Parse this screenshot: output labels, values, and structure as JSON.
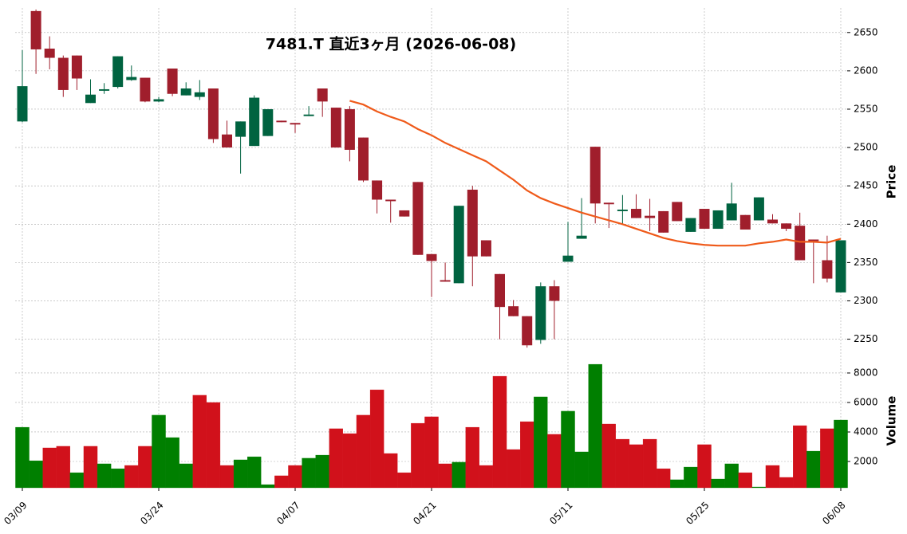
{
  "chart_data": {
    "type": "candlestick",
    "title": "7481.T  直近3ヶ月  (2026-06-08)",
    "categories": [
      "03/09",
      null,
      null,
      null,
      null,
      null,
      null,
      null,
      null,
      null,
      "03/24",
      null,
      null,
      null,
      null,
      null,
      null,
      null,
      null,
      null,
      "04/07",
      null,
      null,
      null,
      null,
      null,
      null,
      null,
      null,
      null,
      "04/21",
      null,
      null,
      null,
      null,
      null,
      null,
      null,
      null,
      null,
      "05/11",
      null,
      null,
      null,
      null,
      null,
      null,
      null,
      null,
      null,
      "05/25",
      null,
      null,
      null,
      null,
      null,
      null,
      null,
      null,
      null,
      "06/08"
    ],
    "open": [
      2534,
      2678,
      2629,
      2617,
      2620,
      2558,
      2574,
      2579,
      2588,
      2591,
      2560,
      2603,
      2568,
      2566,
      2577,
      2517,
      2514,
      2502,
      2515,
      2535,
      2532,
      2541,
      2577,
      2552,
      2550,
      2513,
      2457,
      2432,
      2418,
      2455,
      2361,
      2327,
      2323,
      2445,
      2379,
      2335,
      2293,
      2280,
      2249,
      2319,
      2351,
      2381,
      2501,
      2428,
      2417,
      2420,
      2411,
      2417,
      2429,
      2390,
      2420,
      2394,
      2405,
      2412,
      2405,
      2406,
      2401,
      2398,
      2380,
      2353,
      2311
    ],
    "high": [
      2627,
      2680,
      2645,
      2620,
      2620,
      2589,
      2584,
      2619,
      2607,
      2591,
      2566,
      2603,
      2585,
      2588,
      2577,
      2535,
      2534,
      2568,
      2550,
      2535,
      2532,
      2554,
      2577,
      2552,
      2554,
      2513,
      2457,
      2432,
      2418,
      2455,
      2361,
      2350,
      2424,
      2450,
      2379,
      2335,
      2301,
      2280,
      2324,
      2327,
      2403,
      2434,
      2501,
      2428,
      2438,
      2439,
      2433,
      2417,
      2429,
      2408,
      2420,
      2418,
      2454,
      2412,
      2435,
      2413,
      2401,
      2415,
      2380,
      2385,
      2379
    ],
    "low": [
      2533,
      2596,
      2602,
      2566,
      2575,
      2558,
      2570,
      2577,
      2587,
      2559,
      2559,
      2567,
      2568,
      2562,
      2506,
      2500,
      2466,
      2502,
      2515,
      2533,
      2519,
      2541,
      2540,
      2500,
      2482,
      2455,
      2414,
      2402,
      2410,
      2360,
      2305,
      2325,
      2323,
      2319,
      2358,
      2250,
      2280,
      2239,
      2244,
      2250,
      2351,
      2381,
      2401,
      2395,
      2400,
      2408,
      2391,
      2389,
      2404,
      2390,
      2394,
      2394,
      2405,
      2393,
      2405,
      2401,
      2391,
      2353,
      2323,
      2324,
      2311
    ],
    "close": [
      2580,
      2628,
      2617,
      2575,
      2590,
      2569,
      2576,
      2619,
      2592,
      2560,
      2563,
      2570,
      2577,
      2572,
      2511,
      2500,
      2534,
      2565,
      2550,
      2533,
      2530,
      2543,
      2560,
      2500,
      2497,
      2457,
      2432,
      2430,
      2410,
      2360,
      2352,
      2325,
      2424,
      2358,
      2358,
      2292,
      2280,
      2242,
      2319,
      2300,
      2359,
      2385,
      2427,
      2426,
      2419,
      2408,
      2408,
      2389,
      2404,
      2408,
      2394,
      2418,
      2427,
      2393,
      2435,
      2401,
      2394,
      2353,
      2378,
      2329,
      2379
    ],
    "up_color": "#006340",
    "down_color": "#a01e2c",
    "ma": {
      "color": "#ef5a1a",
      "values": [
        null,
        null,
        null,
        null,
        null,
        null,
        null,
        null,
        null,
        null,
        null,
        null,
        null,
        null,
        null,
        null,
        null,
        null,
        null,
        null,
        null,
        null,
        null,
        null,
        2561,
        2556,
        2547,
        2540,
        2534,
        2524,
        2516,
        2506,
        2498,
        2490,
        2482,
        2470,
        2458,
        2444,
        2434,
        2427,
        2421,
        2415,
        2410,
        2405,
        2400,
        2394,
        2388,
        2382,
        2378,
        2375,
        2373,
        2372,
        2372,
        2372,
        2375,
        2377,
        2380,
        2377,
        2377,
        2376,
        2381
      ]
    },
    "ylim": [
      2235,
      2682
    ],
    "yticks": [
      2250,
      2300,
      2350,
      2400,
      2450,
      2500,
      2550,
      2600,
      2650
    ],
    "ylabel": "Price",
    "grid": true,
    "volume": {
      "ylabel": "Volume",
      "ylim": [
        216,
        9350
      ],
      "yticks": [
        2000,
        4000,
        6000,
        8000
      ],
      "values": [
        4320,
        2050,
        2920,
        3030,
        1240,
        3030,
        1840,
        1510,
        1730,
        3030,
        5140,
        3620,
        1840,
        6490,
        6000,
        1730,
        2110,
        2320,
        430,
        1030,
        1730,
        2220,
        2430,
        4220,
        3890,
        5140,
        6860,
        2540,
        1240,
        4590,
        5030,
        1840,
        1950,
        4320,
        1730,
        7780,
        2810,
        4700,
        6380,
        3840,
        5410,
        2650,
        8590,
        4540,
        3510,
        3140,
        3510,
        1510,
        760,
        1620,
        3140,
        810,
        1840,
        1240,
        270,
        1730,
        920,
        4430,
        2700,
        4220,
        4810
      ],
      "colors": [
        "#007f00",
        "#007f00",
        "#d1111b",
        "#d1111b",
        "#007f00",
        "#d1111b",
        "#007f00",
        "#007f00",
        "#d1111b",
        "#d1111b",
        "#007f00",
        "#007f00",
        "#007f00",
        "#d1111b",
        "#d1111b",
        "#d1111b",
        "#007f00",
        "#007f00",
        "#007f00",
        "#d1111b",
        "#d1111b",
        "#007f00",
        "#007f00",
        "#d1111b",
        "#d1111b",
        "#d1111b",
        "#d1111b",
        "#d1111b",
        "#d1111b",
        "#d1111b",
        "#d1111b",
        "#d1111b",
        "#007f00",
        "#d1111b",
        "#d1111b",
        "#d1111b",
        "#d1111b",
        "#d1111b",
        "#007f00",
        "#d1111b",
        "#007f00",
        "#007f00",
        "#007f00",
        "#d1111b",
        "#d1111b",
        "#d1111b",
        "#d1111b",
        "#d1111b",
        "#007f00",
        "#007f00",
        "#d1111b",
        "#007f00",
        "#007f00",
        "#d1111b",
        "#007f00",
        "#d1111b",
        "#d1111b",
        "#d1111b",
        "#007f00",
        "#d1111b",
        "#007f00"
      ]
    }
  }
}
